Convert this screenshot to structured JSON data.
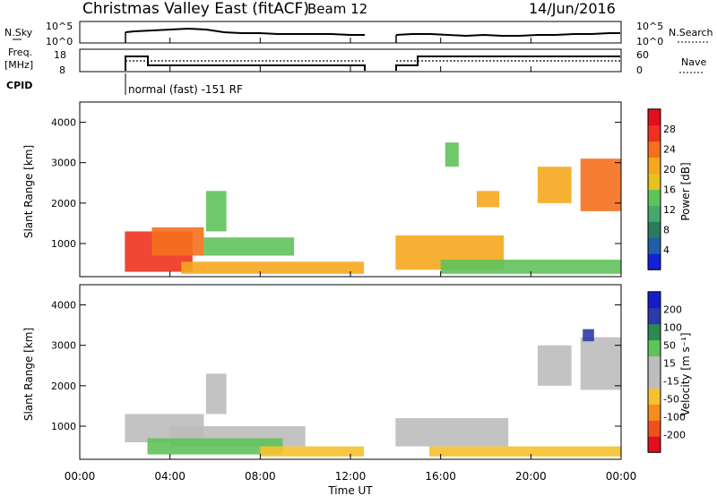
{
  "header": {
    "station": "Christmas Valley East (fitACF)",
    "beam": "Beam 12",
    "date": "14/Jun/2016"
  },
  "nsky_panel": {
    "left_label": "N.Sky",
    "left_ticks": [
      "10^5",
      "10^0"
    ],
    "right_ticks": [
      "10^5",
      "10^0"
    ],
    "right_label": "N.Search"
  },
  "freq_panel": {
    "left_label_1": "Freq.",
    "left_label_2": "[MHz]",
    "left_ticks": [
      "18",
      "8"
    ],
    "right_ticks": [
      "60",
      "0"
    ],
    "right_label": "Nave"
  },
  "cpid": {
    "label": "CPID",
    "text": "normal (fast) -151 RF"
  },
  "colors": {
    "white": "#ffffff",
    "black": "#000000",
    "grey": "#bdbdbd",
    "power_scale": [
      "#1420d8",
      "#1e5fa8",
      "#2c7a60",
      "#46a86a",
      "#5fc35a",
      "#e6c21e",
      "#f5a81e",
      "#f5701e",
      "#ee321e",
      "#e0101e"
    ],
    "velocity_scale": [
      "#e0101e",
      "#f0501e",
      "#f58c1e",
      "#f5c12e",
      "#bdbdbd",
      "#bdbdbd",
      "#5fc35a",
      "#2c8a50",
      "#2c3aa8",
      "#141ec8"
    ]
  },
  "chart_data": [
    {
      "type": "heatmap",
      "title": "",
      "xlabel": "Time UT",
      "ylabel": "Slant Range [km]",
      "x_ticks": [
        "00:00",
        "04:00",
        "08:00",
        "12:00",
        "16:00",
        "20:00",
        "00:00"
      ],
      "xlim_hours": [
        0,
        24
      ],
      "ylim": [
        180,
        4500
      ],
      "y_ticks": [
        1000,
        2000,
        3000,
        4000
      ],
      "colorbar": {
        "label": "Power [dB]",
        "ticks": [
          "28",
          "24",
          "20",
          "16",
          "12",
          "8",
          "4"
        ],
        "range": [
          0,
          30
        ]
      },
      "no_data_interval_hours": [
        12.6,
        13.95
      ],
      "echo_regions": [
        {
          "t0": 2.0,
          "t1": 5.0,
          "r0": 300,
          "r1": 1300,
          "power_db": 24
        },
        {
          "t0": 3.2,
          "t1": 5.5,
          "r0": 700,
          "r1": 1400,
          "power_db": 22
        },
        {
          "t0": 4.5,
          "t1": 12.6,
          "r0": 250,
          "r1": 550,
          "power_db": 18
        },
        {
          "t0": 5.5,
          "t1": 9.5,
          "r0": 700,
          "r1": 1150,
          "power_db": 14
        },
        {
          "t0": 5.6,
          "t1": 6.5,
          "r0": 1300,
          "r1": 2300,
          "power_db": 12
        },
        {
          "t0": 14.0,
          "t1": 18.8,
          "r0": 350,
          "r1": 1200,
          "power_db": 20
        },
        {
          "t0": 16.0,
          "t1": 24.0,
          "r0": 250,
          "r1": 600,
          "power_db": 14
        },
        {
          "t0": 16.2,
          "t1": 16.8,
          "r0": 2900,
          "r1": 3500,
          "power_db": 14
        },
        {
          "t0": 17.6,
          "t1": 18.6,
          "r0": 1900,
          "r1": 2300,
          "power_db": 18
        },
        {
          "t0": 20.3,
          "t1": 21.8,
          "r0": 2000,
          "r1": 2900,
          "power_db": 18
        },
        {
          "t0": 22.2,
          "t1": 24.0,
          "r0": 1800,
          "r1": 3100,
          "power_db": 22
        }
      ]
    },
    {
      "type": "heatmap",
      "title": "",
      "xlabel": "Time UT",
      "ylabel": "Slant Range [km]",
      "x_ticks": [
        "00:00",
        "04:00",
        "08:00",
        "12:00",
        "16:00",
        "20:00",
        "00:00"
      ],
      "xlim_hours": [
        0,
        24
      ],
      "ylim": [
        180,
        4500
      ],
      "y_ticks": [
        1000,
        2000,
        3000,
        4000
      ],
      "colorbar": {
        "label": "Velocity [m s⁻¹]",
        "ticks": [
          "200",
          "100",
          "50",
          "15",
          "-15",
          "-50",
          "-100",
          "-200"
        ],
        "range": [
          -250,
          250
        ]
      },
      "no_data_interval_hours": [
        12.6,
        13.95
      ],
      "echo_regions": [
        {
          "t0": 2.0,
          "t1": 5.5,
          "r0": 600,
          "r1": 1300,
          "velocity": 0
        },
        {
          "t0": 4.0,
          "t1": 10.0,
          "r0": 500,
          "r1": 1000,
          "velocity": 0
        },
        {
          "t0": 3.0,
          "t1": 9.0,
          "r0": 300,
          "r1": 700,
          "velocity": 40
        },
        {
          "t0": 8.0,
          "t1": 12.6,
          "r0": 250,
          "r1": 500,
          "velocity": -40
        },
        {
          "t0": 5.6,
          "t1": 6.5,
          "r0": 1300,
          "r1": 2300,
          "velocity": 0
        },
        {
          "t0": 14.0,
          "t1": 19.0,
          "r0": 500,
          "r1": 1200,
          "velocity": 0
        },
        {
          "t0": 15.5,
          "t1": 24.0,
          "r0": 250,
          "r1": 500,
          "velocity": -40
        },
        {
          "t0": 20.3,
          "t1": 21.8,
          "r0": 2000,
          "r1": 3000,
          "velocity": 0
        },
        {
          "t0": 22.2,
          "t1": 24.0,
          "r0": 1900,
          "r1": 3200,
          "velocity": 0
        },
        {
          "t0": 22.3,
          "t1": 22.8,
          "r0": 3100,
          "r1": 3400,
          "velocity": 200
        }
      ]
    }
  ]
}
